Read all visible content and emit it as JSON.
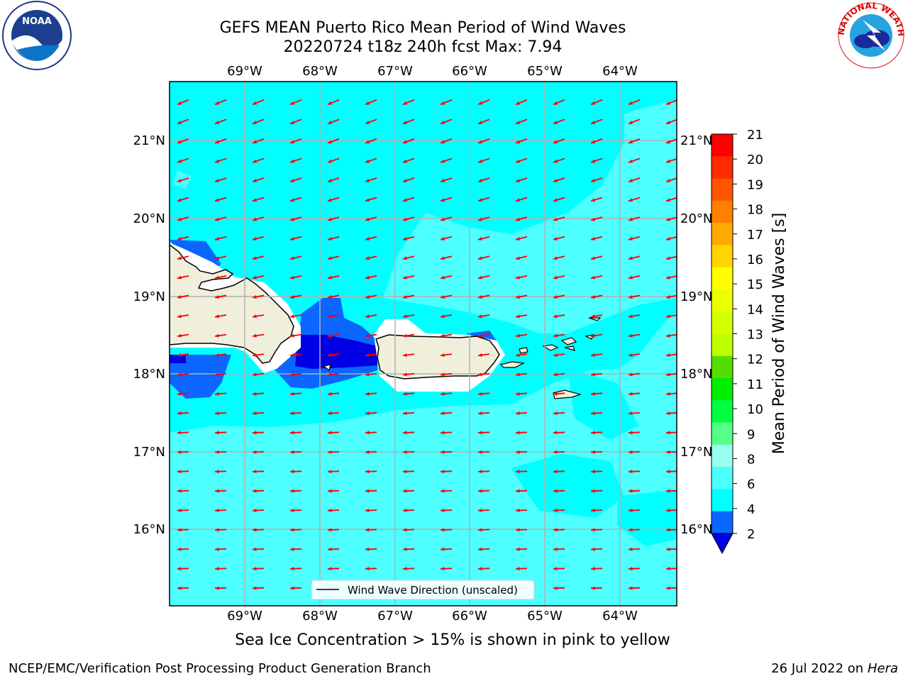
{
  "header": {
    "title_line1": "GEFS MEAN Puerto Rico Mean Period of Wind Waves",
    "title_line2": "20220724 t18z 240h fcst   Max: 7.94"
  },
  "logos": {
    "left": {
      "name": "noara-logo",
      "text": "NOAA"
    },
    "right": {
      "name": "nws-logo",
      "text": "NATIONAL WEATHER SERVICE"
    }
  },
  "map": {
    "lon_labels": [
      "69°W",
      "68°W",
      "67°W",
      "66°W",
      "65°W",
      "64°W"
    ],
    "lat_labels": [
      "21°N",
      "20°N",
      "19°N",
      "18°N",
      "17°N",
      "16°N"
    ],
    "legend_label": "Wind Wave Direction (unscaled)",
    "colors": {
      "ocean_main": "#00ffff",
      "ocean_light": "#4dffff",
      "blue_mid": "#0a66ff",
      "blue_dark": "#0000e6",
      "land": "#efefdc",
      "arrow": "#ff0000",
      "grid": "#b0b0b0"
    }
  },
  "colorbar": {
    "label": "Mean Period of Wind Waves [s]",
    "ticks": [
      "21",
      "20",
      "19",
      "18",
      "17",
      "16",
      "15",
      "14",
      "13",
      "12",
      "11",
      "10",
      "9",
      "8",
      "6",
      "4",
      "2"
    ],
    "colors": [
      "#ff0000",
      "#ff2a00",
      "#ff5500",
      "#ff8000",
      "#ffaa00",
      "#ffd400",
      "#ffff00",
      "#eaff00",
      "#d4ff00",
      "#bfff00",
      "#55dd00",
      "#00ee00",
      "#00ff40",
      "#55ff88",
      "#99ffee",
      "#4dffff",
      "#00ffff",
      "#0a66ff"
    ],
    "extend_color": "#0000e6"
  },
  "note": "Sea Ice Concentration > 15% is shown in pink to yellow",
  "footer": {
    "left": "NCEP/EMC/Verification Post Processing Product Generation Branch",
    "right_prefix": "26 Jul 2022 on ",
    "right_machine": "Hera"
  }
}
